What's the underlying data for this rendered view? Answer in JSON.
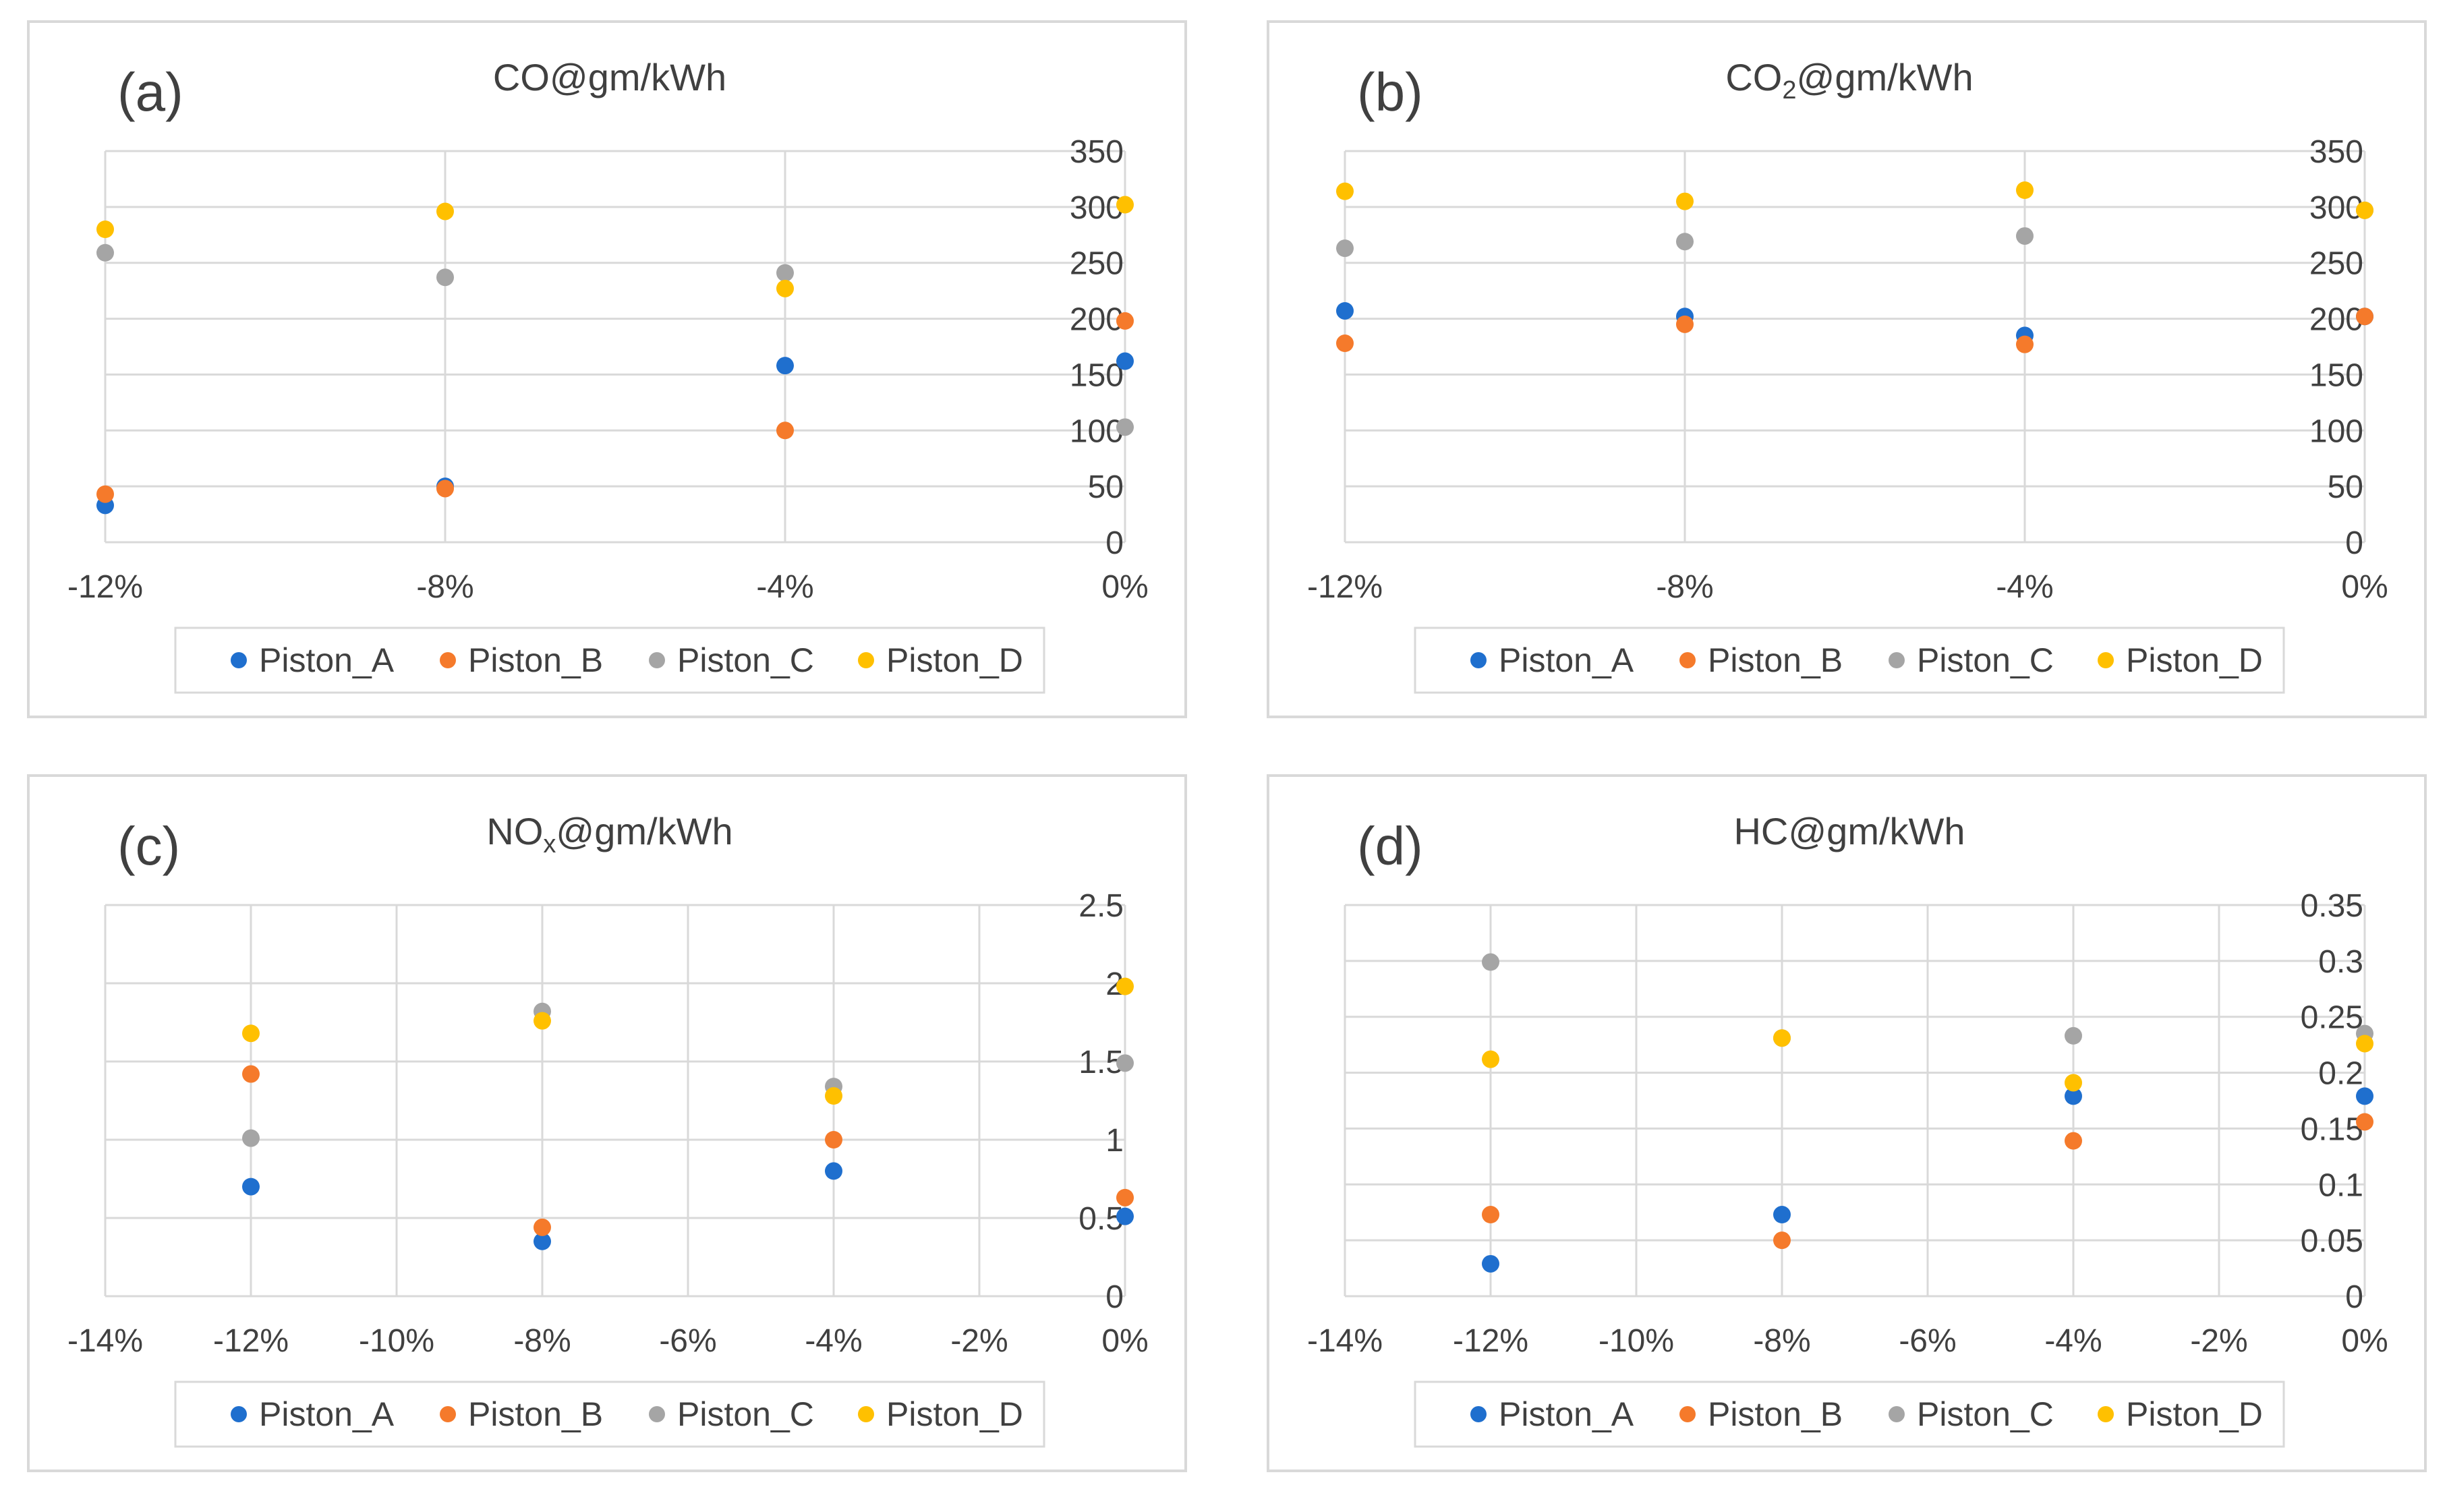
{
  "chart_data": [
    {
      "type": "scatter",
      "panel_label": "(a)",
      "title": "CO@gm/kWh",
      "title_parts": [
        {
          "t": "CO@gm/kWh",
          "s": ""
        }
      ],
      "xlabel": "",
      "ylabel": "",
      "xlim": [
        -12,
        0
      ],
      "xticks": [
        -12,
        -8,
        -4,
        0
      ],
      "xtick_labels": [
        "-12%",
        "-8%",
        "-4%",
        "0%"
      ],
      "ylim": [
        0,
        350
      ],
      "yticks": [
        0,
        50,
        100,
        150,
        200,
        250,
        300,
        350
      ],
      "ytick_labels": [
        "0",
        "50",
        "100",
        "150",
        "200",
        "250",
        "300",
        "350"
      ],
      "vertical_gridlines": true,
      "legend_position": "bottom",
      "series": [
        {
          "name": "Piston_A",
          "color": "#1f6fce",
          "x": [
            -12,
            -8,
            -4,
            0
          ],
          "y": [
            33,
            50,
            158,
            162
          ]
        },
        {
          "name": "Piston_B",
          "color": "#f57a2b",
          "x": [
            -12,
            -8,
            -4,
            0
          ],
          "y": [
            43,
            48,
            100,
            198
          ]
        },
        {
          "name": "Piston_C",
          "color": "#a5a5a5",
          "x": [
            -12,
            -8,
            -4,
            0
          ],
          "y": [
            259,
            237,
            241,
            103
          ]
        },
        {
          "name": "Piston_D",
          "color": "#ffc000",
          "x": [
            -12,
            -8,
            -4,
            0
          ],
          "y": [
            280,
            296,
            227,
            302
          ]
        }
      ]
    },
    {
      "type": "scatter",
      "panel_label": "(b)",
      "title": "CO2@gm/kWh",
      "title_parts": [
        {
          "t": "CO",
          "s": ""
        },
        {
          "t": "2",
          "s": "sub"
        },
        {
          "t": "@gm/kWh",
          "s": ""
        }
      ],
      "xlabel": "",
      "ylabel": "",
      "xlim": [
        -12,
        0
      ],
      "xticks": [
        -12,
        -8,
        -4,
        0
      ],
      "xtick_labels": [
        "-12%",
        "-8%",
        "-4%",
        "0%"
      ],
      "ylim": [
        0,
        350
      ],
      "yticks": [
        0,
        50,
        100,
        150,
        200,
        250,
        300,
        350
      ],
      "ytick_labels": [
        "0",
        "50",
        "100",
        "150",
        "200",
        "250",
        "300",
        "350"
      ],
      "vertical_gridlines": true,
      "legend_position": "bottom",
      "series": [
        {
          "name": "Piston_A",
          "color": "#1f6fce",
          "x": [
            -12,
            -8,
            -4,
            0
          ],
          "y": [
            207,
            202,
            185,
            202
          ]
        },
        {
          "name": "Piston_B",
          "color": "#f57a2b",
          "x": [
            -12,
            -8,
            -4,
            0
          ],
          "y": [
            178,
            195,
            177,
            202
          ]
        },
        {
          "name": "Piston_C",
          "color": "#a5a5a5",
          "x": [
            -12,
            -8,
            -4,
            0
          ],
          "y": [
            263,
            269,
            274,
            297
          ]
        },
        {
          "name": "Piston_D",
          "color": "#ffc000",
          "x": [
            -12,
            -8,
            -4,
            0
          ],
          "y": [
            314,
            305,
            315,
            297
          ]
        }
      ]
    },
    {
      "type": "scatter",
      "panel_label": "(c)",
      "title": "NOx@gm/kWh",
      "title_parts": [
        {
          "t": "NO",
          "s": ""
        },
        {
          "t": "x",
          "s": "sub"
        },
        {
          "t": "@gm/kWh",
          "s": ""
        }
      ],
      "xlabel": "",
      "ylabel": "",
      "xlim": [
        -14,
        0
      ],
      "xticks": [
        -14,
        -12,
        -10,
        -8,
        -6,
        -4,
        -2,
        0
      ],
      "xtick_labels": [
        "-14%",
        "-12%",
        "-10%",
        "-8%",
        "-6%",
        "-4%",
        "-2%",
        "0%"
      ],
      "ylim": [
        0,
        2.5
      ],
      "yticks": [
        0,
        0.5,
        1,
        1.5,
        2,
        2.5
      ],
      "ytick_labels": [
        "0",
        "0.5",
        "1",
        "1.5",
        "2",
        "2.5"
      ],
      "vertical_gridlines": true,
      "legend_position": "bottom",
      "series": [
        {
          "name": "Piston_A",
          "color": "#1f6fce",
          "x": [
            -12,
            -8,
            -4,
            0
          ],
          "y": [
            0.7,
            0.35,
            0.8,
            0.51
          ]
        },
        {
          "name": "Piston_B",
          "color": "#f57a2b",
          "x": [
            -12,
            -8,
            -4,
            0
          ],
          "y": [
            1.42,
            0.44,
            1.0,
            0.63
          ]
        },
        {
          "name": "Piston_C",
          "color": "#a5a5a5",
          "x": [
            -12,
            -8,
            -4,
            0
          ],
          "y": [
            1.01,
            1.82,
            1.34,
            1.49
          ]
        },
        {
          "name": "Piston_D",
          "color": "#ffc000",
          "x": [
            -12,
            -8,
            -4,
            0
          ],
          "y": [
            1.68,
            1.76,
            1.28,
            1.98
          ]
        }
      ]
    },
    {
      "type": "scatter",
      "panel_label": "(d)",
      "title": "HC@gm/kWh",
      "title_parts": [
        {
          "t": "HC@gm/kWh",
          "s": ""
        }
      ],
      "xlabel": "",
      "ylabel": "",
      "xlim": [
        -14,
        0
      ],
      "xticks": [
        -14,
        -12,
        -10,
        -8,
        -6,
        -4,
        -2,
        0
      ],
      "xtick_labels": [
        "-14%",
        "-12%",
        "-10%",
        "-8%",
        "-6%",
        "-4%",
        "-2%",
        "0%"
      ],
      "ylim": [
        0,
        0.35
      ],
      "yticks": [
        0,
        0.05,
        0.1,
        0.15,
        0.2,
        0.25,
        0.3,
        0.35
      ],
      "ytick_labels": [
        "0",
        "0.05",
        "0.1",
        "0.15",
        "0.2",
        "0.25",
        "0.3",
        "0.35"
      ],
      "vertical_gridlines": true,
      "legend_position": "bottom",
      "series": [
        {
          "name": "Piston_A",
          "color": "#1f6fce",
          "x": [
            -12,
            -8,
            -4,
            0
          ],
          "y": [
            0.029,
            0.073,
            0.179,
            0.179
          ]
        },
        {
          "name": "Piston_B",
          "color": "#f57a2b",
          "x": [
            -12,
            -8,
            -4,
            0
          ],
          "y": [
            0.073,
            0.05,
            0.139,
            0.156
          ]
        },
        {
          "name": "Piston_C",
          "color": "#a5a5a5",
          "x": [
            -12,
            -8,
            -4,
            0
          ],
          "y": [
            0.299,
            0.231,
            0.233,
            0.235
          ]
        },
        {
          "name": "Piston_D",
          "color": "#ffc000",
          "x": [
            -12,
            -8,
            -4,
            0
          ],
          "y": [
            0.212,
            0.231,
            0.191,
            0.226
          ]
        }
      ]
    }
  ]
}
